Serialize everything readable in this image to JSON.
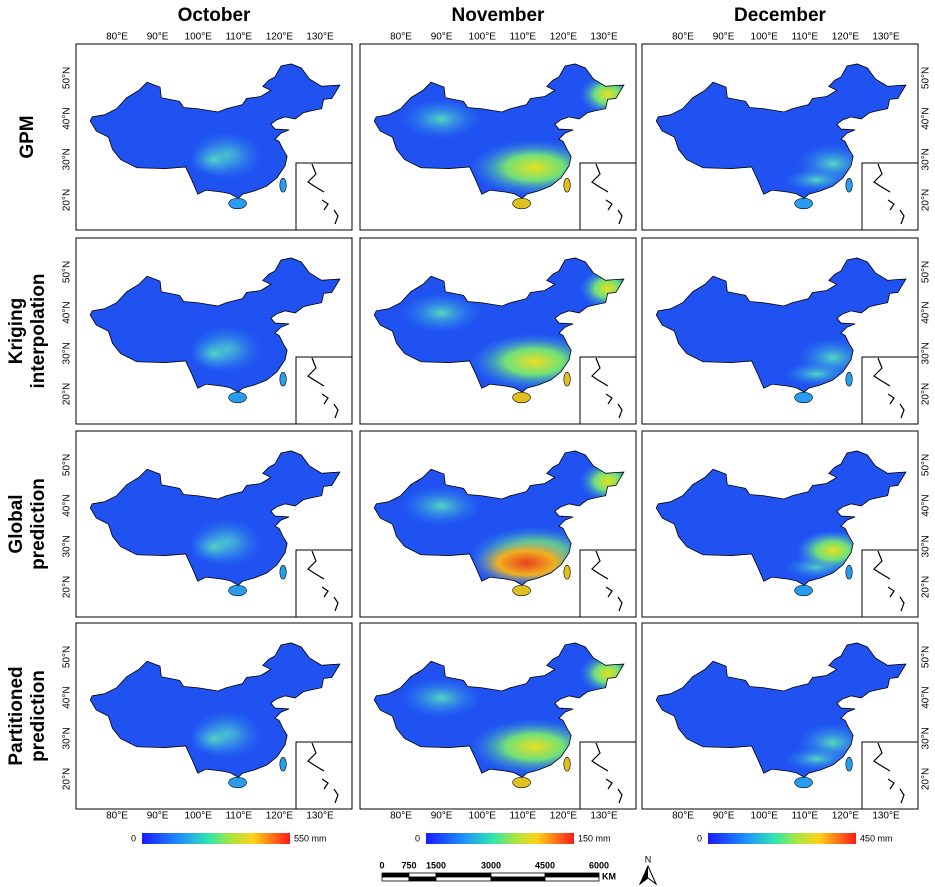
{
  "column_titles": [
    "October",
    "November",
    "December"
  ],
  "row_labels": [
    [
      "GPM"
    ],
    [
      "Kriging",
      "interpolation"
    ],
    [
      "Global",
      "prediction"
    ],
    [
      "Partitioned",
      "prediction"
    ]
  ],
  "lon_labels": [
    "80°E",
    "90°E",
    "100°E",
    "110°E",
    "120°E",
    "130°E"
  ],
  "lat_labels": [
    "20°N",
    "30°N",
    "40°N",
    "50°N"
  ],
  "colorbars": [
    {
      "min": "0",
      "max": "550 mm"
    },
    {
      "min": "0",
      "max": "150 mm"
    },
    {
      "min": "0",
      "max": "450 mm"
    }
  ],
  "scale_bar": {
    "labels": [
      "0",
      "750",
      "1500",
      "3000",
      "4500",
      "6000"
    ],
    "unit": "KM"
  },
  "north_arrow": "N"
}
